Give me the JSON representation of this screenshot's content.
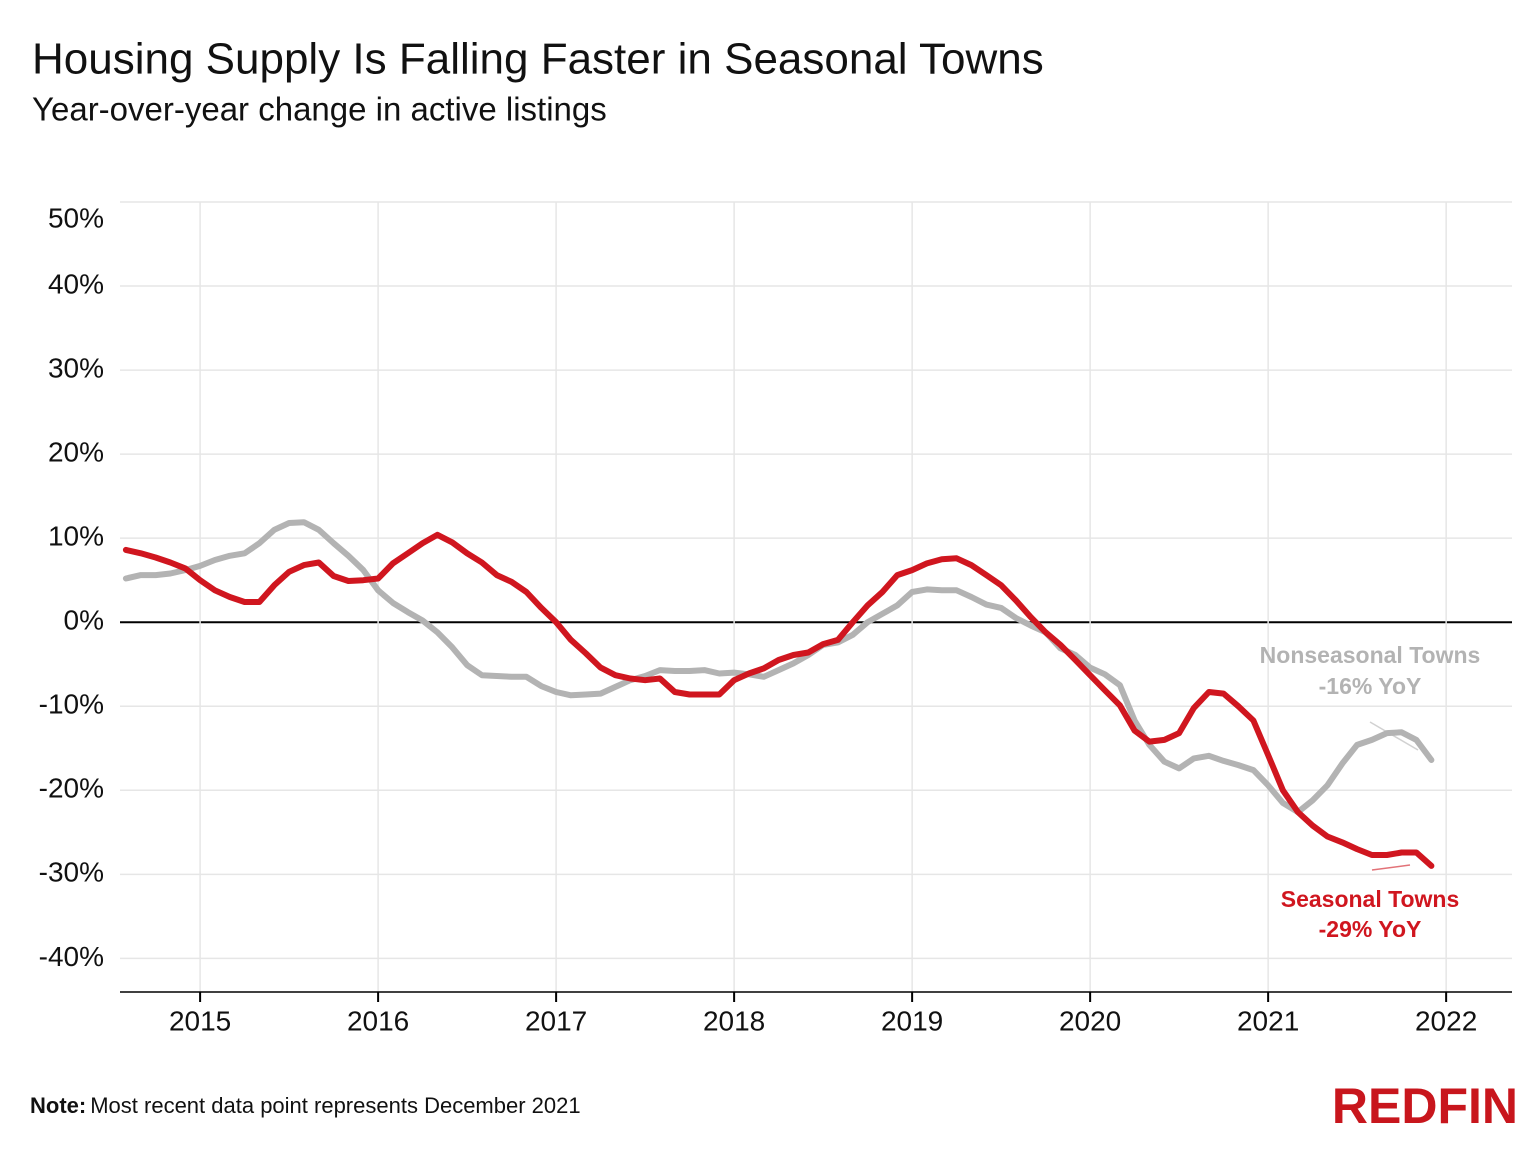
{
  "chart_data": {
    "type": "line",
    "title": "Housing Supply Is Falling Faster in Seasonal Towns",
    "subtitle": "Year-over-year change in active listings",
    "x": [
      2014.583,
      2014.667,
      2014.75,
      2014.833,
      2014.917,
      2015,
      2015.083,
      2015.167,
      2015.25,
      2015.333,
      2015.417,
      2015.5,
      2015.583,
      2015.667,
      2015.75,
      2015.833,
      2015.917,
      2016,
      2016.083,
      2016.167,
      2016.25,
      2016.333,
      2016.417,
      2016.5,
      2016.583,
      2016.667,
      2016.75,
      2016.833,
      2016.917,
      2017,
      2017.083,
      2017.167,
      2017.25,
      2017.333,
      2017.417,
      2017.5,
      2017.583,
      2017.667,
      2017.75,
      2017.833,
      2017.917,
      2018,
      2018.083,
      2018.167,
      2018.25,
      2018.333,
      2018.417,
      2018.5,
      2018.583,
      2018.667,
      2018.75,
      2018.833,
      2018.917,
      2019,
      2019.083,
      2019.167,
      2019.25,
      2019.333,
      2019.417,
      2019.5,
      2019.583,
      2019.667,
      2019.75,
      2019.833,
      2019.917,
      2020,
      2020.083,
      2020.167,
      2020.25,
      2020.333,
      2020.417,
      2020.5,
      2020.583,
      2020.667,
      2020.75,
      2020.833,
      2020.917,
      2021,
      2021.083,
      2021.167,
      2021.25,
      2021.333,
      2021.417,
      2021.5,
      2021.583,
      2021.667,
      2021.75,
      2021.833,
      2021.917
    ],
    "series": [
      {
        "name": "Nonseasonal Towns",
        "end_label": "-16% YoY",
        "color": "#b3b3b3",
        "values": [
          5.2,
          5.6,
          5.6,
          5.8,
          6.2,
          6.7,
          7.4,
          7.9,
          8.2,
          9.4,
          11.0,
          11.8,
          11.9,
          11.0,
          9.4,
          7.9,
          6.2,
          3.8,
          2.3,
          1.2,
          0.2,
          -1.2,
          -3.0,
          -5.1,
          -6.3,
          -6.4,
          -6.5,
          -6.5,
          -7.6,
          -8.3,
          -8.7,
          -8.6,
          -8.5,
          -7.7,
          -6.9,
          -6.4,
          -5.7,
          -5.8,
          -5.8,
          -5.7,
          -6.1,
          -6.0,
          -6.2,
          -6.5,
          -5.7,
          -4.9,
          -3.9,
          -2.7,
          -2.4,
          -1.5,
          0,
          1.0,
          2.0,
          3.6,
          3.9,
          3.8,
          3.8,
          3.0,
          2.1,
          1.7,
          0.5,
          -0.4,
          -1.2,
          -3.1,
          -3.9,
          -5.4,
          -6.2,
          -7.5,
          -11.7,
          -14.6,
          -16.6,
          -17.4,
          -16.2,
          -15.9,
          -16.5,
          -17.0,
          -17.6,
          -19.4,
          -21.5,
          -22.6,
          -21.2,
          -19.4,
          -16.8,
          -14.6,
          -14.0,
          -13.2,
          -13.1,
          -14.0,
          -16.4
        ]
      },
      {
        "name": "Seasonal Towns",
        "end_label": "-29% YoY",
        "color": "#d0161f",
        "values": [
          8.6,
          8.2,
          7.7,
          7.1,
          6.4,
          5.0,
          3.8,
          3.0,
          2.4,
          2.4,
          4.4,
          6.0,
          6.8,
          7.1,
          5.5,
          4.9,
          5.0,
          5.2,
          7.0,
          8.2,
          9.4,
          10.4,
          9.5,
          8.2,
          7.1,
          5.6,
          4.8,
          3.6,
          1.7,
          0,
          -2.1,
          -3.7,
          -5.4,
          -6.3,
          -6.7,
          -6.9,
          -6.7,
          -8.3,
          -8.6,
          -8.6,
          -8.6,
          -6.9,
          -6.1,
          -5.5,
          -4.5,
          -3.9,
          -3.6,
          -2.6,
          -2.1,
          0,
          2.0,
          3.6,
          5.6,
          6.2,
          7.0,
          7.5,
          7.6,
          6.8,
          5.6,
          4.4,
          2.6,
          0.6,
          -1.2,
          -2.7,
          -4.5,
          -6.3,
          -8.1,
          -9.9,
          -12.9,
          -14.2,
          -14.0,
          -13.2,
          -10.2,
          -8.3,
          -8.5,
          -10.0,
          -11.7,
          -15.8,
          -20.0,
          -22.6,
          -24.2,
          -25.5,
          -26.2,
          -27.0,
          -27.7,
          -27.7,
          -27.4,
          -27.4,
          -29.0
        ]
      }
    ],
    "xlim": [
      2014.55,
      2022.37
    ],
    "xticks": [
      2015,
      2016,
      2017,
      2018,
      2019,
      2020,
      2021,
      2022
    ],
    "ylim": [
      -44,
      50
    ],
    "yticks": [
      {
        "value": -40,
        "label": "-40%"
      },
      {
        "value": -30,
        "label": "-30%"
      },
      {
        "value": -20,
        "label": "-20%"
      },
      {
        "value": -10,
        "label": "-10%"
      },
      {
        "value": 0,
        "label": "0%"
      },
      {
        "value": 10,
        "label": "10%"
      },
      {
        "value": 20,
        "label": "20%"
      },
      {
        "value": 30,
        "label": "30%"
      },
      {
        "value": 40,
        "label": "40%"
      },
      {
        "value": 50,
        "label": "50%"
      }
    ],
    "grid": true,
    "note": {
      "label": "Note:",
      "text": "Most recent data point represents December 2021"
    },
    "logo": "REDFIN"
  }
}
